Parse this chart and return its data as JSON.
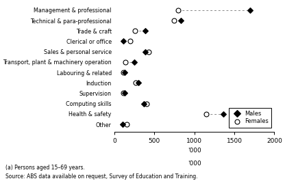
{
  "categories": [
    "Management & professional",
    "Technical & para-professional",
    "Trade & craft",
    "Clerical or office",
    "Sales & personal service",
    "Transport, plant & machinery operation",
    "Labouring & related",
    "Induction",
    "Supervision",
    "Computing skills",
    "Health & safety",
    "Other"
  ],
  "males": [
    1700,
    830,
    390,
    110,
    390,
    250,
    130,
    300,
    130,
    370,
    1360,
    100
  ],
  "females": [
    800,
    750,
    260,
    195,
    430,
    140,
    110,
    265,
    115,
    400,
    1150,
    155
  ],
  "xlim": [
    0,
    2000
  ],
  "xticks": [
    0,
    500,
    1000,
    1500,
    2000
  ],
  "xlabel": "'000",
  "footnote1": "(a) Persons aged 15–69 years.",
  "footnote2": "Source: ABS data available on request, Survey of Education and Training."
}
